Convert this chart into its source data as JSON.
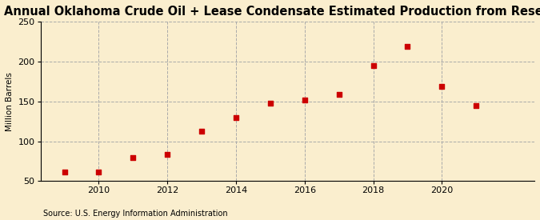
{
  "title": "Annual Oklahoma Crude Oil + Lease Condensate Estimated Production from Reserves",
  "ylabel": "Million Barrels",
  "source": "Source: U.S. Energy Information Administration",
  "background_color": "#faeece",
  "plot_bg_color": "#faeece",
  "years": [
    2009,
    2010,
    2011,
    2012,
    2013,
    2014,
    2015,
    2016,
    2017,
    2018,
    2019,
    2020,
    2021
  ],
  "values": [
    61,
    61,
    79,
    84,
    113,
    130,
    148,
    152,
    159,
    195,
    219,
    169,
    145
  ],
  "marker_color": "#cc0000",
  "marker_size": 5,
  "xlim": [
    2008.3,
    2022.7
  ],
  "ylim": [
    50,
    250
  ],
  "yticks": [
    50,
    100,
    150,
    200,
    250
  ],
  "xticks": [
    2010,
    2012,
    2014,
    2016,
    2018,
    2020
  ],
  "title_fontsize": 10.5,
  "label_fontsize": 7.5,
  "tick_fontsize": 8,
  "source_fontsize": 7
}
